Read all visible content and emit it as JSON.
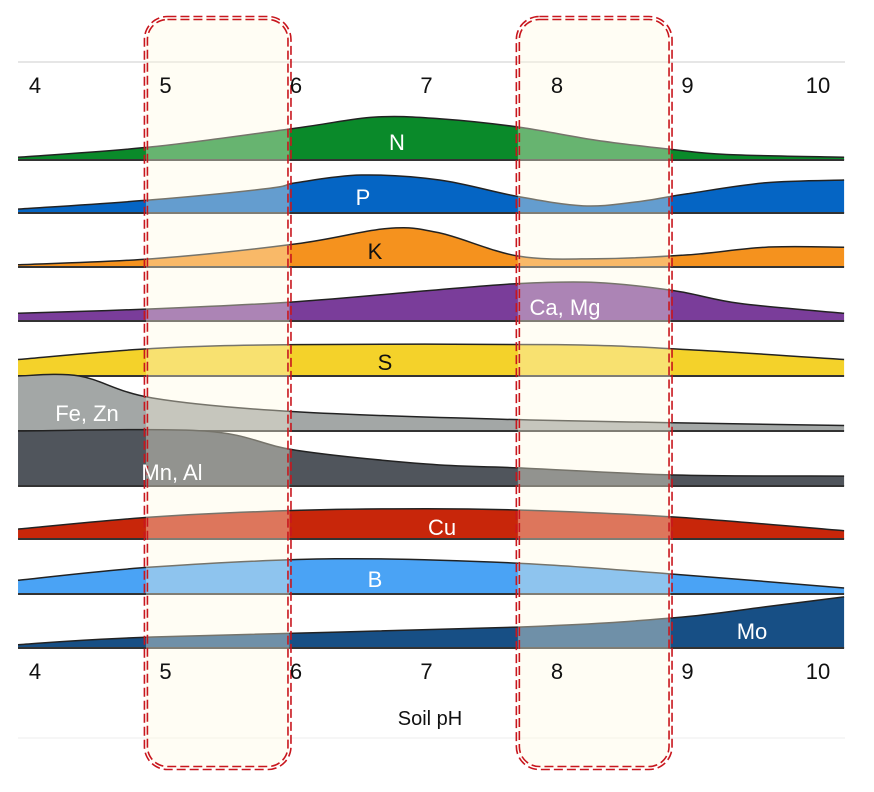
{
  "chart_data": {
    "type": "area",
    "title": "",
    "xlabel": "Soil pH",
    "ylabel": "",
    "xlim": [
      3.87,
      10.2
    ],
    "ylim": [
      0,
      1
    ],
    "x_ticks": [
      "4",
      "5",
      "6",
      "7",
      "8",
      "9",
      "10"
    ],
    "grid": false,
    "legend": "none",
    "highlight_ranges": [
      [
        4.85,
        5.95
      ],
      [
        7.7,
        8.87
      ]
    ],
    "highlight_color": "#c8161d",
    "series": [
      {
        "name": "N",
        "color": "#0a8a2a",
        "label_color": "#ffffff",
        "points": [
          [
            3.87,
            0.05
          ],
          [
            4.9,
            0.24
          ],
          [
            6.0,
            0.58
          ],
          [
            6.6,
            0.78
          ],
          [
            7.1,
            0.75
          ],
          [
            7.7,
            0.6
          ],
          [
            8.3,
            0.36
          ],
          [
            8.85,
            0.2
          ],
          [
            9.3,
            0.1
          ],
          [
            10.2,
            0.05
          ]
        ]
      },
      {
        "name": "P",
        "color": "#0565c4",
        "label_color": "#ffffff",
        "points": [
          [
            3.87,
            0.07
          ],
          [
            4.9,
            0.24
          ],
          [
            5.8,
            0.45
          ],
          [
            6.0,
            0.55
          ],
          [
            6.5,
            0.69
          ],
          [
            7.1,
            0.6
          ],
          [
            7.7,
            0.3
          ],
          [
            8.2,
            0.13
          ],
          [
            8.6,
            0.2
          ],
          [
            9.0,
            0.35
          ],
          [
            9.6,
            0.55
          ],
          [
            10.2,
            0.6
          ]
        ]
      },
      {
        "name": "K",
        "color": "#f5921e",
        "label_color": "#111111",
        "points": [
          [
            3.87,
            0.04
          ],
          [
            4.9,
            0.15
          ],
          [
            6.0,
            0.42
          ],
          [
            6.7,
            0.7
          ],
          [
            7.1,
            0.62
          ],
          [
            7.7,
            0.2
          ],
          [
            8.3,
            0.15
          ],
          [
            9.0,
            0.22
          ],
          [
            9.6,
            0.36
          ],
          [
            10.2,
            0.36
          ]
        ]
      },
      {
        "name": "Ca, Mg",
        "color": "#7a3d9a",
        "label_color": "#ffffff",
        "points": [
          [
            3.87,
            0.14
          ],
          [
            4.9,
            0.22
          ],
          [
            6.0,
            0.35
          ],
          [
            7.0,
            0.55
          ],
          [
            7.7,
            0.68
          ],
          [
            8.3,
            0.7
          ],
          [
            8.9,
            0.55
          ],
          [
            9.4,
            0.32
          ],
          [
            10.2,
            0.14
          ]
        ]
      },
      {
        "name": "S",
        "color": "#f4d22a",
        "label_color": "#111111",
        "points": [
          [
            3.87,
            0.3
          ],
          [
            4.9,
            0.5
          ],
          [
            6.0,
            0.57
          ],
          [
            8.0,
            0.57
          ],
          [
            9.0,
            0.48
          ],
          [
            10.2,
            0.3
          ]
        ]
      },
      {
        "name": "Fe, Zn",
        "color": "#a3a7a6",
        "label_color": "#ffffff",
        "points": [
          [
            3.87,
            1
          ],
          [
            4.34,
            1
          ],
          [
            4.9,
            0.6
          ],
          [
            6.0,
            0.35
          ],
          [
            7.8,
            0.2
          ],
          [
            10.2,
            0.1
          ]
        ]
      },
      {
        "name": "Mn, Al",
        "color": "#50555c",
        "label_color": "#ffffff",
        "points": [
          [
            3.87,
            1
          ],
          [
            5.3,
            1
          ],
          [
            6.0,
            0.65
          ],
          [
            7.0,
            0.4
          ],
          [
            7.7,
            0.33
          ],
          [
            8.9,
            0.2
          ],
          [
            10.2,
            0.18
          ]
        ]
      },
      {
        "name": "Cu",
        "color": "#c8260a",
        "label_color": "#ffffff",
        "points": [
          [
            3.87,
            0.18
          ],
          [
            4.9,
            0.4
          ],
          [
            6.0,
            0.52
          ],
          [
            7.0,
            0.55
          ],
          [
            7.8,
            0.52
          ],
          [
            8.9,
            0.4
          ],
          [
            10.2,
            0.15
          ]
        ]
      },
      {
        "name": "B",
        "color": "#4aa3f5",
        "label_color": "#ffffff",
        "points": [
          [
            3.87,
            0.25
          ],
          [
            4.9,
            0.49
          ],
          [
            6.3,
            0.64
          ],
          [
            7.7,
            0.56
          ],
          [
            8.9,
            0.36
          ],
          [
            10.2,
            0.11
          ]
        ]
      },
      {
        "name": "Mo",
        "color": "#174f85",
        "label_color": "#ffffff",
        "points": [
          [
            3.87,
            0.06
          ],
          [
            4.9,
            0.2
          ],
          [
            7.7,
            0.38
          ],
          [
            8.9,
            0.55
          ],
          [
            9.6,
            0.75
          ],
          [
            10.2,
            0.93
          ]
        ]
      }
    ]
  }
}
